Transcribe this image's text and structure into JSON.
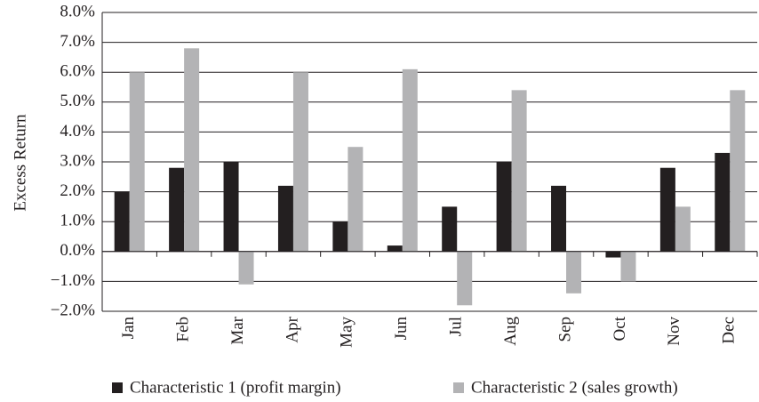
{
  "chart_data": {
    "type": "bar",
    "y_label": "Excess Return",
    "categories": [
      "Jan",
      "Feb",
      "Mar",
      "Apr",
      "May",
      "Jun",
      "Jul",
      "Aug",
      "Sep",
      "Oct",
      "Nov",
      "Dec"
    ],
    "series": [
      {
        "name": "Characteristic 1 (profit margin)",
        "color": "#231f20",
        "values": [
          2.0,
          2.8,
          3.0,
          2.2,
          1.0,
          0.2,
          1.5,
          3.0,
          2.2,
          -0.2,
          2.8,
          3.3
        ]
      },
      {
        "name": "Characteristic 2 (sales growth)",
        "color": "#b3b3b5",
        "values": [
          6.0,
          6.8,
          -1.1,
          6.0,
          3.5,
          6.1,
          -1.8,
          5.4,
          -1.4,
          -1.0,
          1.5,
          5.4
        ]
      }
    ],
    "ylim": [
      -2,
      8
    ],
    "yticks": [
      {
        "value": -2,
        "label": "−2.0%"
      },
      {
        "value": -1,
        "label": "−1.0%"
      },
      {
        "value": 0,
        "label": "0.0%"
      },
      {
        "value": 1,
        "label": "1.0%"
      },
      {
        "value": 2,
        "label": "2.0%"
      },
      {
        "value": 3,
        "label": "3.0%"
      },
      {
        "value": 4,
        "label": "4.0%"
      },
      {
        "value": 5,
        "label": "5.0%"
      },
      {
        "value": 6,
        "label": "6.0%"
      },
      {
        "value": 7,
        "label": "7.0%"
      },
      {
        "value": 8,
        "label": "8.0%"
      }
    ],
    "grid": true,
    "legend": "bottom"
  }
}
